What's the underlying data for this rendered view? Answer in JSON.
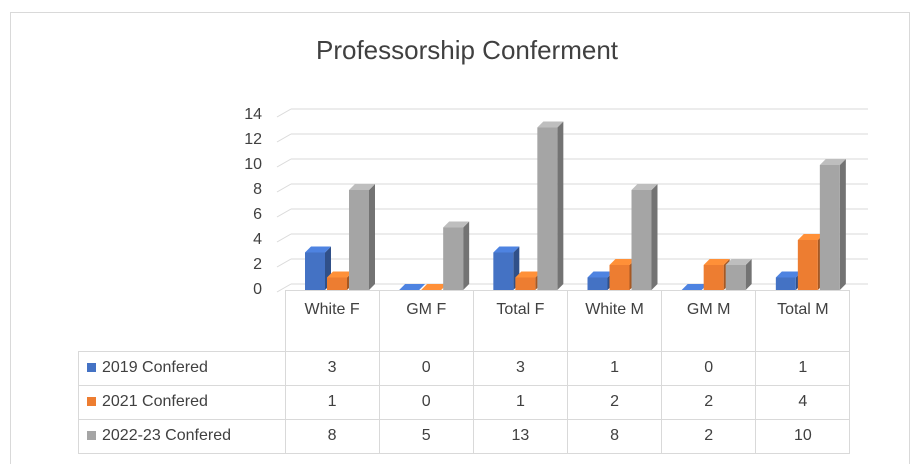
{
  "chart_data": {
    "type": "bar3d",
    "title": "Professorship Conferment",
    "categories": [
      "White F",
      "GM F",
      "Total F",
      "White M",
      "GM M",
      "Total M"
    ],
    "series": [
      {
        "name": "2019 Confered",
        "color": "#4472c4",
        "values": [
          3,
          0,
          3,
          1,
          0,
          1
        ]
      },
      {
        "name": "2021 Confered",
        "color": "#ed7d31",
        "values": [
          1,
          0,
          1,
          2,
          2,
          4
        ]
      },
      {
        "name": "2022-23 Confered",
        "color": "#a5a5a5",
        "values": [
          8,
          5,
          13,
          8,
          2,
          10
        ]
      }
    ],
    "ylim": [
      0,
      14
    ],
    "yticks": [
      0,
      2,
      4,
      6,
      8,
      10,
      12,
      14
    ],
    "grid": true,
    "data_table": true
  }
}
